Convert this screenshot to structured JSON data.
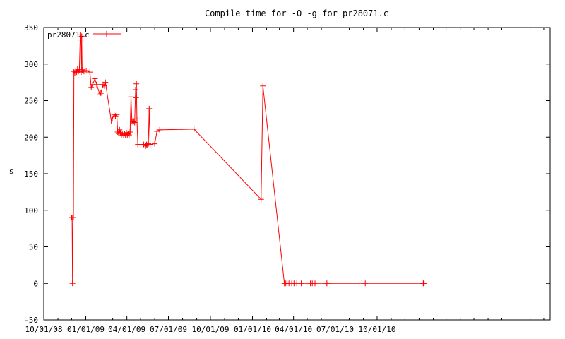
{
  "chart_data": {
    "type": "line",
    "title": "Compile time for -O -g for pr28071.c",
    "xlabel": "",
    "ylabel": "s",
    "xlim": [
      "2008-10-01",
      "2011-10-15"
    ],
    "ylim": [
      -50,
      350
    ],
    "grid": false,
    "legend_position": "top-left",
    "x_ticks": [
      "2008-10-01",
      "2009-01-01",
      "2009-04-01",
      "2009-07-01",
      "2009-10-01",
      "2010-01-01",
      "2010-04-01",
      "2010-07-01",
      "2010-10-01"
    ],
    "x_tick_labels": [
      "10/01/08",
      "01/01/09",
      "04/01/09",
      "07/01/09",
      "10/01/09",
      "01/01/10",
      "04/01/10",
      "07/01/10",
      "10/01/10"
    ],
    "y_ticks": [
      -50,
      0,
      50,
      100,
      150,
      200,
      250,
      300,
      350
    ],
    "y_tick_labels": [
      "-50",
      "0",
      "50",
      "100",
      "150",
      "200",
      "250",
      "300",
      "350"
    ],
    "colors": {
      "series": "#ff0000",
      "axis": "#000000",
      "background": "#ffffff"
    },
    "series": [
      {
        "name": "pr28071.c",
        "points": [
          [
            "2008-12-01",
            90
          ],
          [
            "2008-12-02",
            90
          ],
          [
            "2008-12-03",
            0
          ],
          [
            "2008-12-04",
            90
          ],
          [
            "2008-12-05",
            90
          ],
          [
            "2008-12-06",
            290
          ],
          [
            "2008-12-08",
            288
          ],
          [
            "2008-12-10",
            291
          ],
          [
            "2008-12-12",
            289
          ],
          [
            "2008-12-14",
            293
          ],
          [
            "2008-12-16",
            290
          ],
          [
            "2008-12-18",
            292
          ],
          [
            "2008-12-20",
            340
          ],
          [
            "2008-12-21",
            333
          ],
          [
            "2008-12-22",
            289
          ],
          [
            "2008-12-23",
            338
          ],
          [
            "2008-12-24",
            292
          ],
          [
            "2008-12-28",
            290
          ],
          [
            "2009-01-02",
            291
          ],
          [
            "2009-01-10",
            289
          ],
          [
            "2009-01-13",
            268
          ],
          [
            "2009-01-16",
            272
          ],
          [
            "2009-01-21",
            280
          ],
          [
            "2009-01-25",
            272
          ],
          [
            "2009-02-01",
            258
          ],
          [
            "2009-02-03",
            260
          ],
          [
            "2009-02-08",
            272
          ],
          [
            "2009-02-11",
            270
          ],
          [
            "2009-02-13",
            275
          ],
          [
            "2009-02-26",
            222
          ],
          [
            "2009-02-28",
            225
          ],
          [
            "2009-03-04",
            231
          ],
          [
            "2009-03-07",
            229
          ],
          [
            "2009-03-10",
            231
          ],
          [
            "2009-03-12",
            207
          ],
          [
            "2009-03-14",
            205
          ],
          [
            "2009-03-16",
            210
          ],
          [
            "2009-03-18",
            206
          ],
          [
            "2009-03-20",
            203
          ],
          [
            "2009-03-22",
            205
          ],
          [
            "2009-03-25",
            202
          ],
          [
            "2009-03-27",
            205
          ],
          [
            "2009-03-29",
            203
          ],
          [
            "2009-03-31",
            206
          ],
          [
            "2009-04-02",
            203
          ],
          [
            "2009-04-04",
            205
          ],
          [
            "2009-04-06",
            203
          ],
          [
            "2009-04-08",
            207
          ],
          [
            "2009-04-10",
            255
          ],
          [
            "2009-04-12",
            222
          ],
          [
            "2009-04-14",
            221
          ],
          [
            "2009-04-16",
            222
          ],
          [
            "2009-04-18",
            220
          ],
          [
            "2009-04-20",
            265
          ],
          [
            "2009-04-21",
            254
          ],
          [
            "2009-04-22",
            273
          ],
          [
            "2009-04-23",
            225
          ],
          [
            "2009-04-25",
            190
          ],
          [
            "2009-05-08",
            190
          ],
          [
            "2009-05-12",
            188
          ],
          [
            "2009-05-14",
            190
          ],
          [
            "2009-05-16",
            189
          ],
          [
            "2009-05-18",
            191
          ],
          [
            "2009-05-20",
            239
          ],
          [
            "2009-05-22",
            190
          ],
          [
            "2009-06-01",
            191
          ],
          [
            "2009-06-06",
            208
          ],
          [
            "2009-06-12",
            210
          ],
          [
            "2009-08-26",
            211
          ],
          [
            "2010-01-20",
            115
          ],
          [
            "2010-01-24",
            270
          ],
          [
            "2010-03-12",
            0
          ],
          [
            "2010-03-15",
            0
          ],
          [
            "2010-03-18",
            0
          ],
          [
            "2010-03-22",
            0
          ],
          [
            "2010-03-28",
            0
          ],
          [
            "2010-04-02",
            0
          ],
          [
            "2010-04-08",
            0
          ],
          [
            "2010-04-18",
            0
          ],
          [
            "2010-05-08",
            0
          ],
          [
            "2010-05-12",
            0
          ],
          [
            "2010-05-18",
            0
          ],
          [
            "2010-06-12",
            0
          ],
          [
            "2010-06-15",
            0
          ],
          [
            "2010-09-05",
            0
          ],
          [
            "2011-01-10",
            0
          ],
          [
            "2011-01-11",
            0
          ],
          [
            "2011-01-12",
            0
          ]
        ]
      }
    ]
  }
}
